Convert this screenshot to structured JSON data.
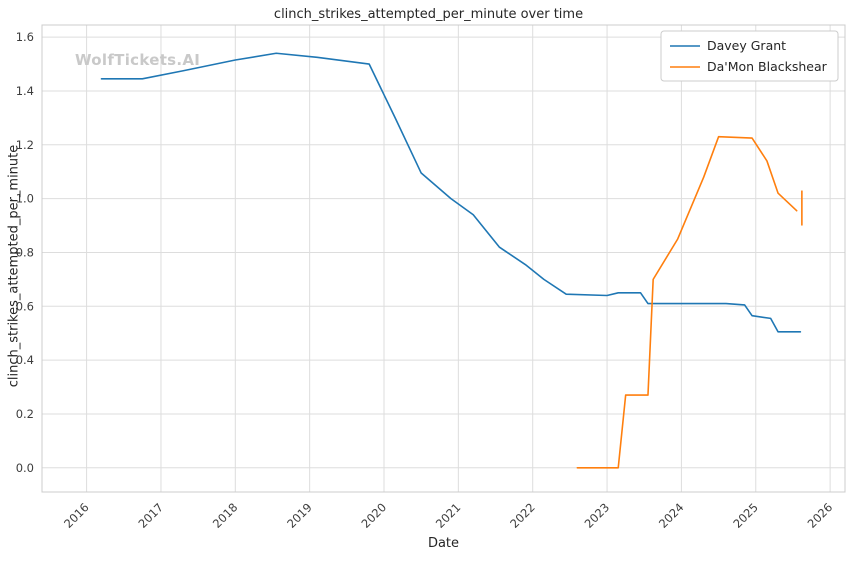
{
  "watermark": "WolfTickets.AI",
  "chart_data": {
    "type": "line",
    "title": "clinch_strikes_attempted_per_minute over time",
    "xlabel": "Date",
    "ylabel": "clinch_strikes_attempted_per_minute",
    "xlim": [
      2015.4,
      2026.2
    ],
    "ylim": [
      -0.09,
      1.645
    ],
    "x_ticks": [
      2016,
      2017,
      2018,
      2019,
      2020,
      2021,
      2022,
      2023,
      2024,
      2025,
      2026
    ],
    "y_ticks": [
      0.0,
      0.2,
      0.4,
      0.6,
      0.8,
      1.0,
      1.2,
      1.4,
      1.6
    ],
    "grid": true,
    "grid_color": "#dddddd",
    "spine_color": "#cccccc",
    "legend": {
      "position": "upper right",
      "entries": [
        "Davey Grant",
        "Da'Mon Blackshear"
      ]
    },
    "series": [
      {
        "name": "Davey Grant",
        "color": "#1f77b4",
        "points": [
          [
            2016.2,
            1.445
          ],
          [
            2016.75,
            1.445
          ],
          [
            2017.3,
            1.475
          ],
          [
            2018.0,
            1.515
          ],
          [
            2018.55,
            1.54
          ],
          [
            2019.1,
            1.525
          ],
          [
            2019.8,
            1.5
          ],
          [
            2020.15,
            1.3
          ],
          [
            2020.5,
            1.095
          ],
          [
            2020.9,
            1.0
          ],
          [
            2021.2,
            0.94
          ],
          [
            2021.55,
            0.82
          ],
          [
            2021.9,
            0.755
          ],
          [
            2022.15,
            0.7
          ],
          [
            2022.45,
            0.645
          ],
          [
            2023.0,
            0.64
          ],
          [
            2023.15,
            0.65
          ],
          [
            2023.45,
            0.65
          ],
          [
            2023.55,
            0.61
          ],
          [
            2024.6,
            0.61
          ],
          [
            2024.85,
            0.605
          ],
          [
            2024.95,
            0.565
          ],
          [
            2025.2,
            0.555
          ],
          [
            2025.3,
            0.505
          ],
          [
            2025.6,
            0.505
          ]
        ]
      },
      {
        "name": "Da'Mon Blackshear",
        "color": "#ff7f0e",
        "points": [
          [
            2022.6,
            0.0
          ],
          [
            2023.15,
            0.0
          ],
          [
            2023.25,
            0.27
          ],
          [
            2023.55,
            0.27
          ],
          [
            2023.62,
            0.7
          ],
          [
            2023.95,
            0.85
          ],
          [
            2024.3,
            1.08
          ],
          [
            2024.5,
            1.23
          ],
          [
            2024.95,
            1.225
          ],
          [
            2025.15,
            1.14
          ],
          [
            2025.3,
            1.02
          ],
          [
            2025.55,
            0.955
          ]
        ],
        "error_bars": [
          {
            "x": 2025.62,
            "low": 0.9,
            "high": 1.03
          }
        ]
      }
    ]
  }
}
